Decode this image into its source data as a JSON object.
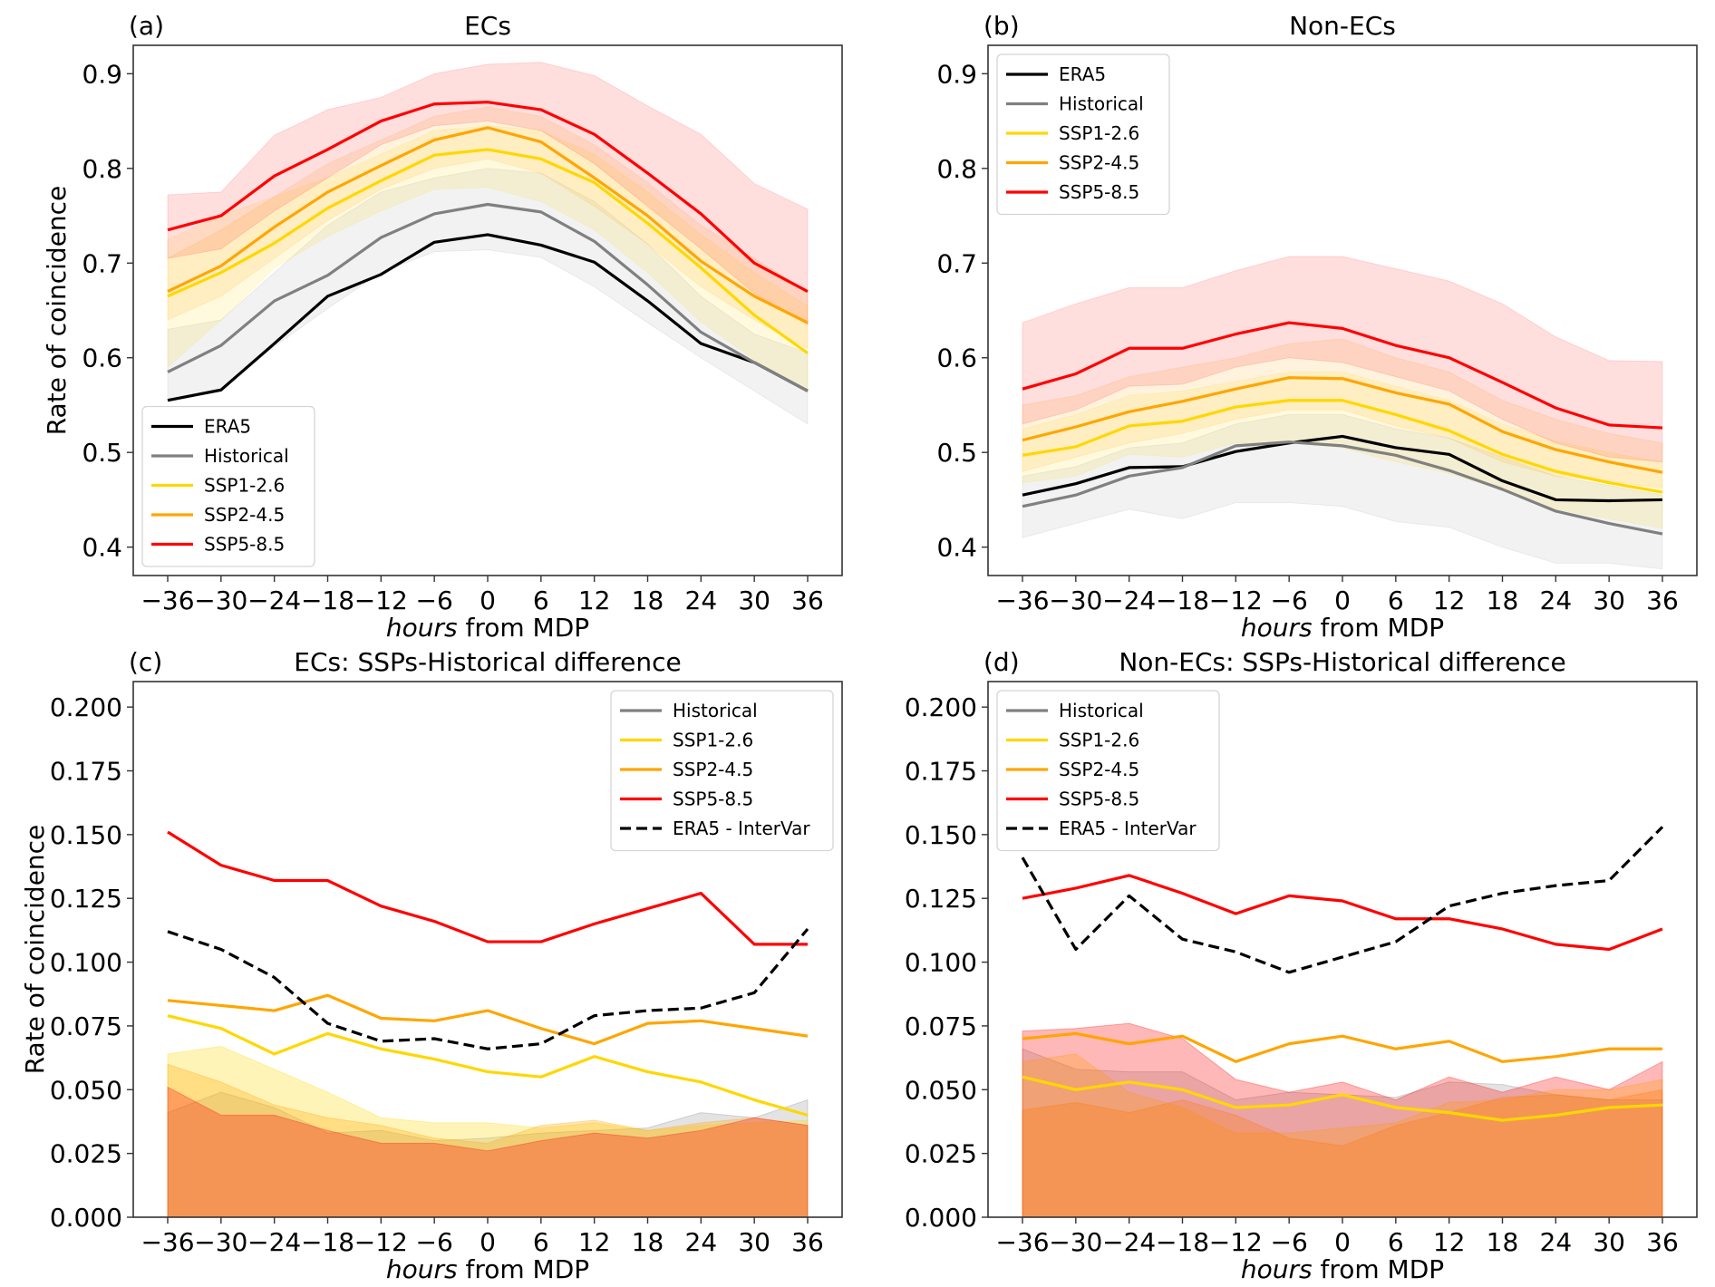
{
  "colors": {
    "ERA5": "#000000",
    "Historical": "#808080",
    "SSP1-2.6": "#ffd700",
    "SSP2-4.5": "#ffa500",
    "SSP5-8.5": "#ff0000",
    "ERA5 - InterVar": "#000000"
  },
  "chart_data": [
    {
      "id": "a",
      "type": "line",
      "panel_label": "(a)",
      "title": "ECs",
      "xlabel_italic": "hours",
      "xlabel_rest": " from MDP",
      "ylabel": "Rate of coincidence",
      "x": [
        -36,
        -30,
        -24,
        -18,
        -12,
        -6,
        0,
        6,
        12,
        18,
        24,
        30,
        36
      ],
      "x_tick_labels": [
        "−36",
        "−30",
        "−24",
        "−18",
        "−12",
        "−6",
        "0",
        "6",
        "12",
        "18",
        "24",
        "30",
        "36"
      ],
      "ylim": [
        0.37,
        0.93
      ],
      "yticks": [
        0.4,
        0.5,
        0.6,
        0.7,
        0.8,
        0.9
      ],
      "ytick_labels": [
        "0.4",
        "0.5",
        "0.6",
        "0.7",
        "0.8",
        "0.9"
      ],
      "legend_position": "lower-left",
      "series": [
        {
          "name": "ERA5",
          "style": "solid",
          "values": [
            0.555,
            0.566,
            0.615,
            0.665,
            0.688,
            0.722,
            0.73,
            0.719,
            0.701,
            0.66,
            0.615,
            0.595,
            0.565
          ]
        },
        {
          "name": "Historical",
          "style": "solid",
          "values": [
            0.585,
            0.613,
            0.66,
            0.687,
            0.727,
            0.752,
            0.762,
            0.754,
            0.723,
            0.677,
            0.627,
            0.595,
            0.565
          ],
          "band": {
            "low": [
              0.555,
              0.566,
              0.612,
              0.652,
              0.69,
              0.712,
              0.714,
              0.706,
              0.675,
              0.637,
              0.6,
              0.565,
              0.53
            ],
            "high": [
              0.63,
              0.64,
              0.69,
              0.74,
              0.775,
              0.79,
              0.8,
              0.795,
              0.765,
              0.72,
              0.665,
              0.625,
              0.605
            ]
          }
        },
        {
          "name": "SSP1-2.6",
          "style": "solid",
          "values": [
            0.665,
            0.69,
            0.721,
            0.758,
            0.787,
            0.814,
            0.82,
            0.81,
            0.785,
            0.742,
            0.695,
            0.645,
            0.605
          ],
          "band": {
            "low": [
              0.59,
              0.64,
              0.695,
              0.728,
              0.755,
              0.778,
              0.78,
              0.765,
              0.735,
              0.69,
              0.638,
              0.598,
              0.565
            ],
            "high": [
              0.725,
              0.75,
              0.77,
              0.79,
              0.815,
              0.84,
              0.845,
              0.84,
              0.815,
              0.775,
              0.73,
              0.69,
              0.655
            ]
          }
        },
        {
          "name": "SSP2-4.5",
          "style": "solid",
          "values": [
            0.67,
            0.697,
            0.738,
            0.775,
            0.803,
            0.83,
            0.843,
            0.828,
            0.79,
            0.75,
            0.702,
            0.665,
            0.637
          ],
          "band": {
            "low": [
              0.64,
              0.665,
              0.705,
              0.745,
              0.778,
              0.8,
              0.81,
              0.795,
              0.76,
              0.72,
              0.675,
              0.64,
              0.61
            ],
            "high": [
              0.705,
              0.735,
              0.77,
              0.805,
              0.83,
              0.855,
              0.865,
              0.855,
              0.825,
              0.785,
              0.74,
              0.705,
              0.67
            ]
          }
        },
        {
          "name": "SSP5-8.5",
          "style": "solid",
          "values": [
            0.735,
            0.75,
            0.792,
            0.82,
            0.85,
            0.868,
            0.87,
            0.862,
            0.836,
            0.795,
            0.752,
            0.7,
            0.67
          ],
          "band": {
            "low": [
              0.705,
              0.715,
              0.755,
              0.79,
              0.825,
              0.845,
              0.85,
              0.84,
              0.805,
              0.76,
              0.715,
              0.668,
              0.635
            ],
            "high": [
              0.772,
              0.775,
              0.835,
              0.862,
              0.875,
              0.9,
              0.91,
              0.912,
              0.898,
              0.866,
              0.836,
              0.784,
              0.757
            ]
          }
        }
      ]
    },
    {
      "id": "b",
      "type": "line",
      "panel_label": "(b)",
      "title": "Non-ECs",
      "xlabel_italic": "hours",
      "xlabel_rest": " from MDP",
      "ylabel": "",
      "x": [
        -36,
        -30,
        -24,
        -18,
        -12,
        -6,
        0,
        6,
        12,
        18,
        24,
        30,
        36
      ],
      "x_tick_labels": [
        "−36",
        "−30",
        "−24",
        "−18",
        "−12",
        "−6",
        "0",
        "6",
        "12",
        "18",
        "24",
        "30",
        "36"
      ],
      "ylim": [
        0.37,
        0.93
      ],
      "yticks": [
        0.4,
        0.5,
        0.6,
        0.7,
        0.8,
        0.9
      ],
      "ytick_labels": [
        "0.4",
        "0.5",
        "0.6",
        "0.7",
        "0.8",
        "0.9"
      ],
      "legend_position": "upper-left",
      "series": [
        {
          "name": "ERA5",
          "style": "solid",
          "values": [
            0.455,
            0.467,
            0.484,
            0.485,
            0.501,
            0.51,
            0.517,
            0.505,
            0.498,
            0.47,
            0.45,
            0.449,
            0.45
          ]
        },
        {
          "name": "Historical",
          "style": "solid",
          "values": [
            0.443,
            0.455,
            0.475,
            0.484,
            0.507,
            0.511,
            0.507,
            0.497,
            0.481,
            0.461,
            0.438,
            0.425,
            0.414
          ],
          "band": {
            "low": [
              0.41,
              0.425,
              0.44,
              0.43,
              0.447,
              0.447,
              0.443,
              0.427,
              0.421,
              0.4,
              0.383,
              0.383,
              0.377
            ],
            "high": [
              0.475,
              0.485,
              0.505,
              0.51,
              0.53,
              0.54,
              0.54,
              0.525,
              0.515,
              0.495,
              0.475,
              0.465,
              0.455
            ]
          }
        },
        {
          "name": "SSP1-2.6",
          "style": "solid",
          "values": [
            0.497,
            0.506,
            0.528,
            0.533,
            0.548,
            0.555,
            0.555,
            0.54,
            0.523,
            0.498,
            0.48,
            0.468,
            0.458
          ],
          "band": {
            "low": [
              0.468,
              0.475,
              0.498,
              0.495,
              0.51,
              0.51,
              0.505,
              0.49,
              0.478,
              0.46,
              0.44,
              0.43,
              0.42
            ],
            "high": [
              0.525,
              0.54,
              0.56,
              0.565,
              0.575,
              0.585,
              0.585,
              0.57,
              0.555,
              0.53,
              0.512,
              0.5,
              0.49
            ]
          }
        },
        {
          "name": "SSP2-4.5",
          "style": "solid",
          "values": [
            0.513,
            0.527,
            0.543,
            0.554,
            0.567,
            0.579,
            0.578,
            0.563,
            0.551,
            0.522,
            0.503,
            0.49,
            0.479
          ],
          "band": {
            "low": [
              0.48,
              0.495,
              0.51,
              0.52,
              0.535,
              0.545,
              0.545,
              0.528,
              0.515,
              0.49,
              0.475,
              0.47,
              0.462
            ],
            "high": [
              0.55,
              0.56,
              0.58,
              0.59,
              0.6,
              0.615,
              0.62,
              0.6,
              0.585,
              0.555,
              0.535,
              0.52,
              0.51
            ]
          }
        },
        {
          "name": "SSP5-8.5",
          "style": "solid",
          "values": [
            0.567,
            0.583,
            0.61,
            0.61,
            0.625,
            0.637,
            0.631,
            0.613,
            0.6,
            0.574,
            0.547,
            0.529,
            0.526
          ],
          "band": {
            "low": [
              0.53,
              0.545,
              0.57,
              0.572,
              0.59,
              0.6,
              0.595,
              0.58,
              0.565,
              0.535,
              0.51,
              0.495,
              0.49
            ],
            "high": [
              0.637,
              0.657,
              0.674,
              0.674,
              0.692,
              0.707,
              0.707,
              0.694,
              0.681,
              0.657,
              0.622,
              0.597,
              0.596
            ]
          }
        }
      ]
    },
    {
      "id": "c",
      "type": "line",
      "panel_label": "(c)",
      "title": "ECs:  SSPs-Historical difference",
      "xlabel_italic": "hours",
      "xlabel_rest": " from MDP",
      "ylabel": "Rate of coincidence",
      "x": [
        -36,
        -30,
        -24,
        -18,
        -12,
        -6,
        0,
        6,
        12,
        18,
        24,
        30,
        36
      ],
      "x_tick_labels": [
        "−36",
        "−30",
        "−24",
        "−18",
        "−12",
        "−6",
        "0",
        "6",
        "12",
        "18",
        "24",
        "30",
        "36"
      ],
      "ylim": [
        0.0,
        0.21
      ],
      "yticks": [
        0.0,
        0.025,
        0.05,
        0.075,
        0.1,
        0.125,
        0.15,
        0.175,
        0.2
      ],
      "ytick_labels": [
        "0.000",
        "0.025",
        "0.050",
        "0.075",
        "0.100",
        "0.125",
        "0.150",
        "0.175",
        "0.200"
      ],
      "legend_position": "upper-right",
      "bands": [
        {
          "name": "Historical",
          "values": [
            0.041,
            0.049,
            0.043,
            0.033,
            0.034,
            0.03,
            0.031,
            0.033,
            0.034,
            0.035,
            0.041,
            0.039,
            0.046
          ]
        },
        {
          "name": "SSP1-2.6",
          "values": [
            0.064,
            0.067,
            0.058,
            0.049,
            0.039,
            0.037,
            0.037,
            0.035,
            0.037,
            0.034,
            0.036,
            0.037,
            0.038
          ]
        },
        {
          "name": "SSP2-4.5",
          "values": [
            0.06,
            0.053,
            0.044,
            0.039,
            0.036,
            0.031,
            0.029,
            0.036,
            0.038,
            0.034,
            0.037,
            0.039,
            0.036
          ]
        },
        {
          "name": "SSP5-8.5",
          "values": [
            0.051,
            0.04,
            0.04,
            0.034,
            0.029,
            0.029,
            0.026,
            0.03,
            0.033,
            0.031,
            0.034,
            0.039,
            0.036
          ]
        }
      ],
      "series": [
        {
          "name": "Historical",
          "style": "solid",
          "values": null
        },
        {
          "name": "SSP1-2.6",
          "style": "solid",
          "values": [
            0.079,
            0.074,
            0.064,
            0.072,
            0.066,
            0.062,
            0.057,
            0.055,
            0.063,
            0.057,
            0.053,
            0.046,
            0.04
          ]
        },
        {
          "name": "SSP2-4.5",
          "style": "solid",
          "values": [
            0.085,
            0.083,
            0.081,
            0.087,
            0.078,
            0.077,
            0.081,
            0.074,
            0.068,
            0.076,
            0.077,
            0.074,
            0.071
          ]
        },
        {
          "name": "SSP5-8.5",
          "style": "solid",
          "values": [
            0.151,
            0.138,
            0.132,
            0.132,
            0.122,
            0.116,
            0.108,
            0.108,
            0.115,
            0.121,
            0.127,
            0.107,
            0.107
          ]
        },
        {
          "name": "ERA5 - InterVar",
          "style": "dashed",
          "values": [
            0.112,
            0.105,
            0.094,
            0.076,
            0.069,
            0.07,
            0.066,
            0.068,
            0.079,
            0.081,
            0.082,
            0.088,
            0.113
          ]
        }
      ]
    },
    {
      "id": "d",
      "type": "line",
      "panel_label": "(d)",
      "title": "Non-ECs:  SSPs-Historical difference",
      "xlabel_italic": "hours",
      "xlabel_rest": " from MDP",
      "ylabel": "",
      "x": [
        -36,
        -30,
        -24,
        -18,
        -12,
        -6,
        0,
        6,
        12,
        18,
        24,
        30,
        36
      ],
      "x_tick_labels": [
        "−36",
        "−30",
        "−24",
        "−18",
        "−12",
        "−6",
        "0",
        "6",
        "12",
        "18",
        "24",
        "30",
        "36"
      ],
      "ylim": [
        0.0,
        0.21
      ],
      "yticks": [
        0.0,
        0.025,
        0.05,
        0.075,
        0.1,
        0.125,
        0.15,
        0.175,
        0.2
      ],
      "ytick_labels": [
        "0.000",
        "0.025",
        "0.050",
        "0.075",
        "0.100",
        "0.125",
        "0.150",
        "0.175",
        "0.200"
      ],
      "legend_position": "upper-left",
      "bands": [
        {
          "name": "Historical",
          "values": [
            0.066,
            0.058,
            0.057,
            0.057,
            0.046,
            0.049,
            0.048,
            0.047,
            0.053,
            0.052,
            0.048,
            0.046,
            0.046
          ]
        },
        {
          "name": "SSP1-2.6",
          "values": [
            0.061,
            0.064,
            0.049,
            0.043,
            0.033,
            0.033,
            0.035,
            0.037,
            0.045,
            0.046,
            0.05,
            0.05,
            0.054
          ]
        },
        {
          "name": "SSP2-4.5",
          "values": [
            0.042,
            0.045,
            0.041,
            0.046,
            0.04,
            0.031,
            0.028,
            0.036,
            0.041,
            0.047,
            0.048,
            0.046,
            0.05
          ]
        },
        {
          "name": "SSP5-8.5",
          "values": [
            0.073,
            0.074,
            0.076,
            0.07,
            0.054,
            0.049,
            0.053,
            0.046,
            0.055,
            0.049,
            0.055,
            0.05,
            0.061
          ]
        }
      ],
      "series": [
        {
          "name": "Historical",
          "style": "solid",
          "values": null
        },
        {
          "name": "SSP1-2.6",
          "style": "solid",
          "values": [
            0.055,
            0.05,
            0.053,
            0.05,
            0.043,
            0.044,
            0.048,
            0.043,
            0.041,
            0.038,
            0.04,
            0.043,
            0.044
          ]
        },
        {
          "name": "SSP2-4.5",
          "style": "solid",
          "values": [
            0.07,
            0.072,
            0.068,
            0.071,
            0.061,
            0.068,
            0.071,
            0.066,
            0.069,
            0.061,
            0.063,
            0.066,
            0.066
          ]
        },
        {
          "name": "SSP5-8.5",
          "style": "solid",
          "values": [
            0.125,
            0.129,
            0.134,
            0.127,
            0.119,
            0.126,
            0.124,
            0.117,
            0.117,
            0.113,
            0.107,
            0.105,
            0.113
          ]
        },
        {
          "name": "ERA5 - InterVar",
          "style": "dashed",
          "values": [
            0.141,
            0.105,
            0.126,
            0.109,
            0.104,
            0.096,
            0.102,
            0.108,
            0.122,
            0.127,
            0.13,
            0.132,
            0.153
          ]
        }
      ]
    }
  ]
}
